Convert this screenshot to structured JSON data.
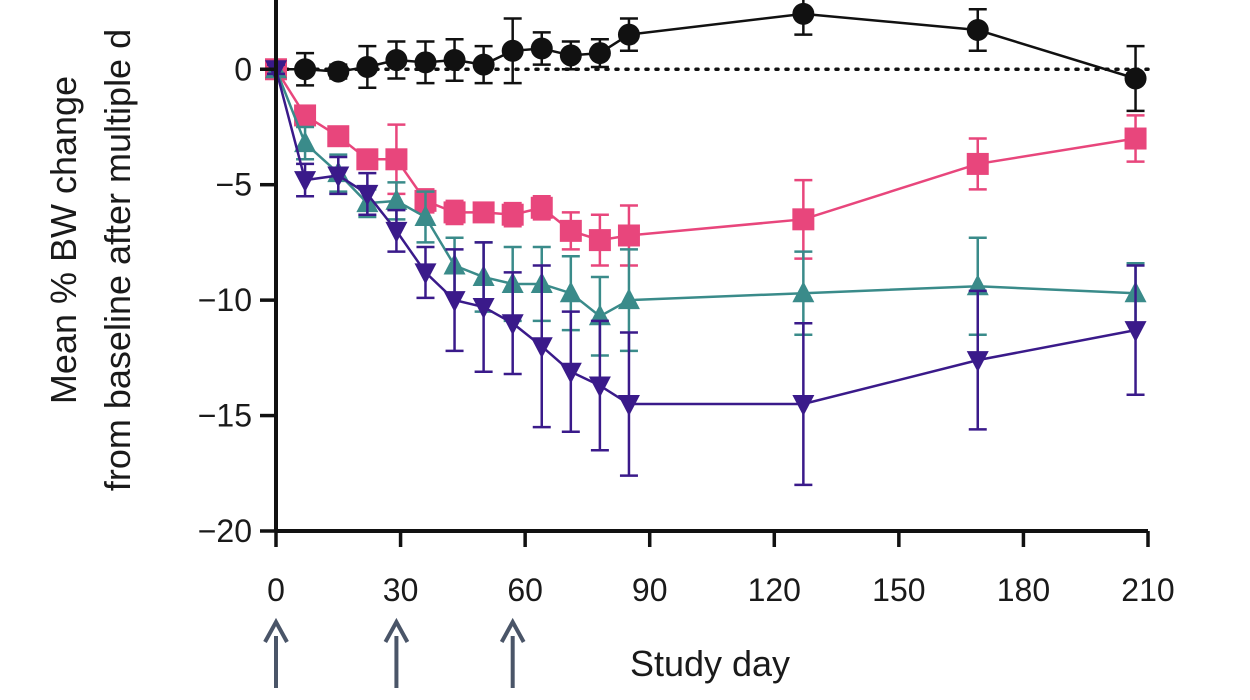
{
  "chart_data": {
    "type": "line",
    "xlabel": "Study day",
    "ylabel_lines": [
      "Mean % BW change",
      "from baseline after multiple d"
    ],
    "xlim": [
      0,
      210
    ],
    "ylim": [
      -20,
      3
    ],
    "xticks": [
      0,
      30,
      60,
      90,
      120,
      150,
      180,
      210
    ],
    "yticks": [
      0,
      -5,
      -10,
      -15,
      -20
    ],
    "ytick_labels": [
      "0",
      "−5",
      "−10",
      "−15",
      "−20"
    ],
    "reference_line": {
      "y": 0,
      "style": "dotted"
    },
    "dose_arrows_days": [
      0,
      29,
      57
    ],
    "series": [
      {
        "color": "#111111",
        "marker": "circle",
        "x": [
          0,
          7,
          15,
          22,
          29,
          36,
          43,
          50,
          57,
          64,
          71,
          78,
          85,
          127,
          169,
          207
        ],
        "y": [
          0,
          0,
          -0.1,
          0.1,
          0.4,
          0.3,
          0.4,
          0.2,
          0.8,
          0.9,
          0.6,
          0.7,
          1.5,
          2.4,
          1.7,
          -0.4
        ],
        "err": [
          0.2,
          0.7,
          0.3,
          0.9,
          0.8,
          0.9,
          0.9,
          0.8,
          1.4,
          0.7,
          0.6,
          0.6,
          0.7,
          0.9,
          0.9,
          1.4
        ]
      },
      {
        "color": "#e8467c",
        "marker": "square",
        "x": [
          0,
          7,
          15,
          22,
          29,
          36,
          43,
          50,
          57,
          64,
          71,
          78,
          85,
          127,
          169,
          207
        ],
        "y": [
          0,
          -2,
          -2.9,
          -3.9,
          -3.9,
          -5.7,
          -6.2,
          -6.2,
          -6.3,
          -6,
          -7,
          -7.4,
          -7.2,
          -6.5,
          -4.1,
          -3
        ],
        "err": [
          0.2,
          0.4,
          0.4,
          0.4,
          1.5,
          0.5,
          0.5,
          0.4,
          0.5,
          0.5,
          0.8,
          1.1,
          1.3,
          1.7,
          1.1,
          1
        ]
      },
      {
        "color": "#3a8b8a",
        "marker": "triangle-up",
        "x": [
          0,
          7,
          15,
          22,
          29,
          36,
          43,
          50,
          57,
          64,
          71,
          78,
          85,
          127,
          169,
          207
        ],
        "y": [
          0,
          -3.2,
          -4.5,
          -5.8,
          -5.7,
          -6.4,
          -8.5,
          -9,
          -9.3,
          -9.3,
          -9.7,
          -10.7,
          -10,
          -9.7,
          -9.4,
          -9.7
        ],
        "err": [
          0.2,
          0.7,
          0.8,
          0.6,
          0.8,
          1.1,
          1.2,
          1.5,
          1.6,
          1.6,
          1.6,
          1.7,
          2.2,
          1.8,
          2.1,
          1.3
        ]
      },
      {
        "color": "#3a1a8a",
        "marker": "triangle-down",
        "x": [
          0,
          7,
          15,
          22,
          29,
          36,
          43,
          50,
          57,
          64,
          71,
          78,
          85,
          127,
          169,
          207
        ],
        "y": [
          0,
          -4.8,
          -4.6,
          -5.4,
          -7,
          -8.8,
          -10,
          -10.3,
          -11,
          -12,
          -13.1,
          -13.7,
          -14.5,
          -14.5,
          -12.6,
          -11.3
        ],
        "err": [
          0.2,
          0.7,
          0.8,
          0.9,
          0.9,
          1.1,
          2.2,
          2.8,
          2.2,
          3.5,
          2.6,
          2.8,
          3.1,
          3.5,
          3,
          2.8
        ]
      }
    ]
  }
}
